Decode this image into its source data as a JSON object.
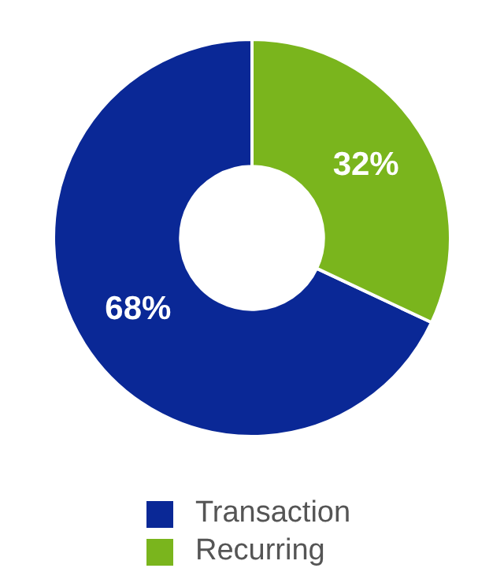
{
  "chart_data": {
    "type": "donut",
    "categories": [
      "Transaction",
      "Recurring"
    ],
    "values": [
      68,
      32
    ],
    "colors": [
      "#0a2896",
      "#7ab51d"
    ],
    "value_labels": [
      "68%",
      "32%"
    ],
    "legend": "bottom"
  }
}
